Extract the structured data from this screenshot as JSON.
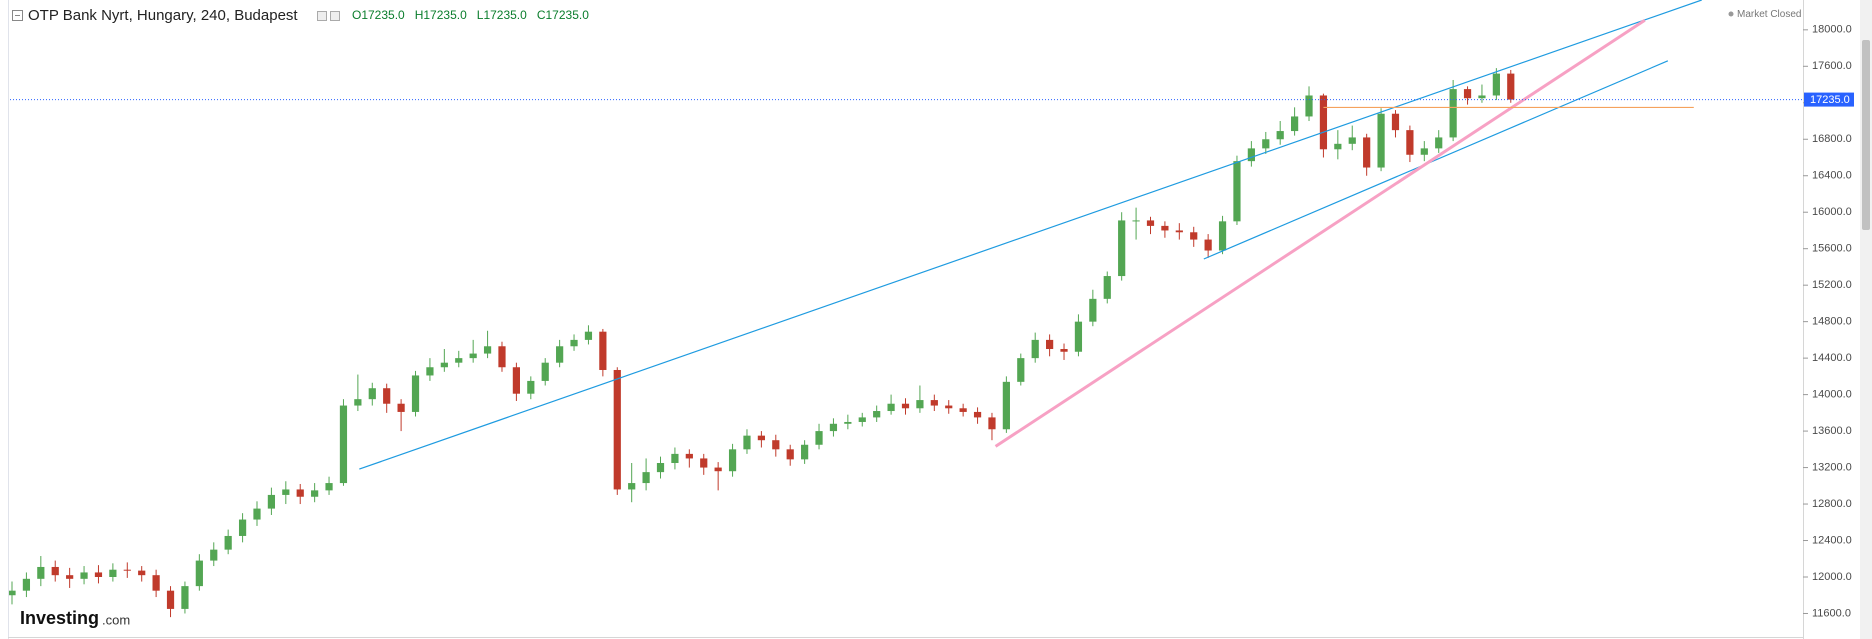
{
  "chart_data": {
    "type": "candlestick",
    "title": "OTP Bank Nyrt, Hungary, 240, Budapest",
    "ohlc_labels": [
      "O17235.0",
      "H17235.0",
      "L17235.0",
      "C17235.0"
    ],
    "status": "Market Closed",
    "logo": [
      "Investing",
      ".com"
    ],
    "up_color": "#53a653",
    "down_color": "#c03a2b",
    "ylim": [
      11364,
      18327
    ],
    "yticks": [
      {
        "value": 11600,
        "label": "11600.0"
      },
      {
        "value": 12000,
        "label": "12000.0"
      },
      {
        "value": 12400,
        "label": "12400.0"
      },
      {
        "value": 12800,
        "label": "12800.0"
      },
      {
        "value": 13200,
        "label": "13200.0"
      },
      {
        "value": 13600,
        "label": "13600.0"
      },
      {
        "value": 14000,
        "label": "14000.0"
      },
      {
        "value": 14400,
        "label": "14400.0"
      },
      {
        "value": 14800,
        "label": "14800.0"
      },
      {
        "value": 15200,
        "label": "15200.0"
      },
      {
        "value": 15600,
        "label": "15600.0"
      },
      {
        "value": 16000,
        "label": "16000.0"
      },
      {
        "value": 16400,
        "label": "16400.0"
      },
      {
        "value": 16800,
        "label": "16800.0"
      },
      {
        "value": 17200,
        "label": "17200.0"
      },
      {
        "value": 17600,
        "label": "17600.0"
      },
      {
        "value": 18000,
        "label": "18000.0"
      }
    ],
    "grid": false,
    "last_price": {
      "value": 17235,
      "label": "17235.0",
      "color": "#2962ff"
    },
    "open": [
      11800,
      11850,
      11980,
      12110,
      12020,
      11980,
      12050,
      12000,
      12080,
      12070,
      12020,
      11850,
      11650,
      11900,
      12180,
      12300,
      12450,
      12630,
      12750,
      12900,
      12960,
      12880,
      12950,
      13030,
      13880,
      13950,
      14070,
      13900,
      13810,
      14210,
      14300,
      14350,
      14400,
      14450,
      14530,
      14300,
      14010,
      14150,
      14350,
      14530,
      14600,
      14690,
      14270,
      12960,
      13030,
      13150,
      13250,
      13350,
      13300,
      13200,
      13160,
      13400,
      13550,
      13500,
      13400,
      13290,
      13450,
      13600,
      13680,
      13700,
      13750,
      13820,
      13900,
      13850,
      13940,
      13880,
      13850,
      13810,
      13750,
      13620,
      14140,
      14400,
      14600,
      14500,
      14470,
      14800,
      15050,
      15300,
      15910,
      15910,
      15850,
      15800,
      15780,
      15700,
      15580,
      15900,
      16560,
      16700,
      16800,
      16890,
      17050,
      17280,
      16690,
      16750,
      16820,
      16490,
      17080,
      16900,
      16630,
      16700,
      16820,
      17350,
      17250,
      17280,
      17520
    ],
    "high": [
      11950,
      12050,
      12230,
      12180,
      12100,
      12120,
      12130,
      12150,
      12160,
      12120,
      12080,
      11900,
      11950,
      12250,
      12380,
      12520,
      12700,
      12830,
      12980,
      13050,
      13020,
      13030,
      13100,
      13950,
      14220,
      14130,
      14120,
      13950,
      14260,
      14400,
      14500,
      14480,
      14600,
      14700,
      14580,
      14350,
      14200,
      14400,
      14600,
      14660,
      14760,
      14720,
      14300,
      13250,
      13300,
      13320,
      13420,
      13400,
      13350,
      13260,
      13460,
      13620,
      13600,
      13560,
      13450,
      13500,
      13680,
      13740,
      13780,
      13800,
      13880,
      14000,
      13960,
      14100,
      14000,
      13940,
      13900,
      13860,
      13800,
      14200,
      14450,
      14680,
      14660,
      14560,
      14880,
      15150,
      15350,
      16000,
      16050,
      15950,
      15900,
      15880,
      15840,
      15760,
      15960,
      16620,
      16780,
      16880,
      17000,
      17150,
      17380,
      17300,
      16900,
      16950,
      16860,
      17140,
      17120,
      16950,
      16780,
      16900,
      17450,
      17380,
      17400,
      17580,
      17560
    ],
    "low": [
      11700,
      11780,
      11900,
      11950,
      11880,
      11920,
      11930,
      11950,
      11990,
      11950,
      11780,
      11560,
      11600,
      11850,
      12120,
      12250,
      12380,
      12560,
      12680,
      12800,
      12800,
      12820,
      12900,
      13000,
      13820,
      13880,
      13800,
      13600,
      13760,
      14150,
      14250,
      14300,
      14350,
      14400,
      14250,
      13930,
      13950,
      14100,
      14300,
      14480,
      14550,
      14200,
      12900,
      12820,
      12950,
      13080,
      13180,
      13200,
      13120,
      12950,
      13100,
      13350,
      13420,
      13320,
      13220,
      13240,
      13400,
      13540,
      13620,
      13650,
      13700,
      13780,
      13780,
      13800,
      13820,
      13790,
      13760,
      13680,
      13500,
      13580,
      14100,
      14350,
      14420,
      14380,
      14420,
      14750,
      15000,
      15250,
      15700,
      15760,
      15720,
      15700,
      15620,
      15500,
      15540,
      15860,
      16500,
      16640,
      16740,
      16840,
      17000,
      16600,
      16580,
      16680,
      16400,
      16450,
      16820,
      16550,
      16560,
      16650,
      16780,
      17180,
      17200,
      17230,
      17200
    ],
    "close": [
      11850,
      11980,
      12110,
      12020,
      11980,
      12050,
      12000,
      12080,
      12070,
      12020,
      11850,
      11650,
      11900,
      12180,
      12300,
      12450,
      12630,
      12750,
      12900,
      12960,
      12880,
      12950,
      13030,
      13880,
      13950,
      14070,
      13900,
      13810,
      14210,
      14300,
      14350,
      14400,
      14450,
      14530,
      14300,
      14010,
      14150,
      14350,
      14530,
      14600,
      14690,
      14270,
      12960,
      13030,
      13150,
      13250,
      13350,
      13300,
      13200,
      13160,
      13400,
      13550,
      13500,
      13400,
      13290,
      13450,
      13600,
      13680,
      13700,
      13750,
      13820,
      13900,
      13850,
      13940,
      13880,
      13850,
      13810,
      13750,
      13620,
      14140,
      14400,
      14600,
      14500,
      14470,
      14800,
      15050,
      15300,
      15910,
      15910,
      15850,
      15800,
      15780,
      15700,
      15580,
      15900,
      16560,
      16700,
      16800,
      16890,
      17050,
      17280,
      16690,
      16750,
      16820,
      16490,
      17080,
      16900,
      16630,
      16700,
      16820,
      17350,
      17250,
      17280,
      17520,
      17235
    ],
    "trendlines": [
      {
        "x": [
          24.1,
          117.25
        ],
        "y": [
          13183,
          18327
        ],
        "color": "#1e9be0"
      },
      {
        "x": [
          82.7,
          114.9
        ],
        "y": [
          15487,
          17660
        ],
        "color": "#1e9be0"
      },
      {
        "x": [
          68.25,
          113.3
        ],
        "y": [
          13432,
          18105
        ],
        "color": "#f7a1c4"
      },
      {
        "x": [
          91,
          116.7
        ],
        "y": [
          17149,
          17149
        ],
        "color": "#f5a25d"
      }
    ]
  }
}
